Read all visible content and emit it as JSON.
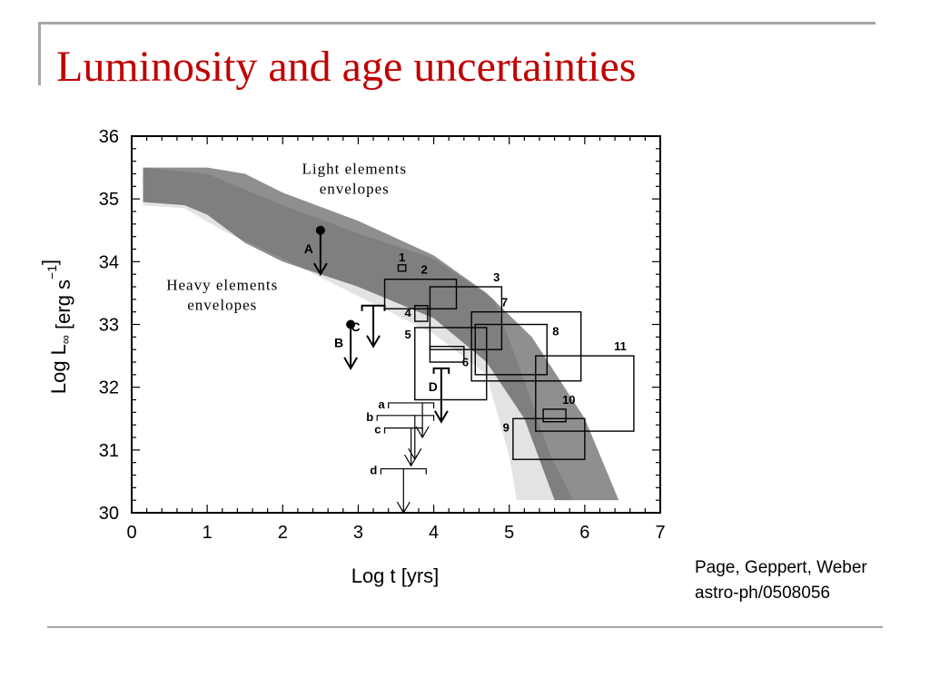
{
  "slide": {
    "title": "Luminosity and age uncertainties",
    "credit_authors": "Page, Geppert, Weber",
    "credit_ref": "astro-ph/0508056",
    "accent_color": "#c00000",
    "rule_color": "#a6a6a6"
  },
  "chart_data": {
    "type": "scatter",
    "xlabel": "Log t [yrs]",
    "ylabel": "Log L∞ [erg s⁻¹]",
    "xlim": [
      0,
      7
    ],
    "ylim": [
      30,
      36
    ],
    "xticks": [
      "0",
      "1",
      "2",
      "3",
      "4",
      "5",
      "6",
      "7"
    ],
    "yticks": [
      "30",
      "31",
      "32",
      "33",
      "34",
      "35",
      "36"
    ],
    "bands": [
      {
        "label_lines": [
          "Light elements",
          "envelopes"
        ],
        "color": "#e3e3e3",
        "upper": [
          [
            0.15,
            35.5
          ],
          [
            1,
            35.4
          ],
          [
            2,
            34.9
          ],
          [
            3,
            34.45
          ],
          [
            4,
            34.05
          ],
          [
            4.8,
            33.4
          ],
          [
            5.2,
            32.1
          ],
          [
            5.55,
            30.9
          ],
          [
            5.85,
            30.2
          ]
        ],
        "lower": [
          [
            0.15,
            34.9
          ],
          [
            0.7,
            34.85
          ],
          [
            1.2,
            34.5
          ],
          [
            2,
            34.05
          ],
          [
            3,
            33.45
          ],
          [
            4,
            32.85
          ],
          [
            4.7,
            32.2
          ],
          [
            5.0,
            30.9
          ],
          [
            5.1,
            30.2
          ]
        ]
      },
      {
        "label_lines": [
          "Heavy elements",
          "envelopes"
        ],
        "color": "#8f8f8f",
        "upper": [
          [
            0.15,
            35.5
          ],
          [
            1,
            35.5
          ],
          [
            1.5,
            35.4
          ],
          [
            2,
            35.1
          ],
          [
            3,
            34.65
          ],
          [
            4,
            34.1
          ],
          [
            4.7,
            33.5
          ],
          [
            5.3,
            32.8
          ],
          [
            6.0,
            31.5
          ],
          [
            6.45,
            30.2
          ]
        ],
        "lower": [
          [
            0.15,
            34.95
          ],
          [
            0.7,
            34.9
          ],
          [
            1,
            34.75
          ],
          [
            1.5,
            34.3
          ],
          [
            2,
            34.0
          ],
          [
            3,
            33.6
          ],
          [
            4,
            33.1
          ],
          [
            4.7,
            32.4
          ],
          [
            5.2,
            31.5
          ],
          [
            5.6,
            30.2
          ]
        ]
      }
    ],
    "boxes": [
      {
        "label": "1",
        "x": [
          3.53,
          3.63
        ],
        "y": [
          33.85,
          33.95
        ]
      },
      {
        "label": "2",
        "x": [
          3.35,
          4.3
        ],
        "y": [
          33.25,
          33.72
        ]
      },
      {
        "label": "3",
        "x": [
          3.95,
          4.9
        ],
        "y": [
          32.6,
          33.6
        ]
      },
      {
        "label": "4",
        "x": [
          3.75,
          3.92
        ],
        "y": [
          33.05,
          33.3
        ]
      },
      {
        "label": "5",
        "x": [
          3.75,
          4.7
        ],
        "y": [
          31.8,
          32.95
        ]
      },
      {
        "label": "6",
        "x": [
          3.95,
          4.4
        ],
        "y": [
          32.4,
          32.65
        ]
      },
      {
        "label": "7",
        "x": [
          4.5,
          5.95
        ],
        "y": [
          32.1,
          33.2
        ]
      },
      {
        "label": "8",
        "x": [
          4.55,
          5.5
        ],
        "y": [
          32.2,
          33.0
        ]
      },
      {
        "label": "9",
        "x": [
          5.05,
          6.0
        ],
        "y": [
          30.85,
          31.5
        ]
      },
      {
        "label": "10",
        "x": [
          5.45,
          5.75
        ],
        "y": [
          31.45,
          31.65
        ]
      },
      {
        "label": "11",
        "x": [
          5.35,
          6.65
        ],
        "y": [
          31.3,
          32.5
        ]
      }
    ],
    "limits": [
      {
        "label": "A",
        "x": 2.5,
        "y": 34.5,
        "style": "point",
        "arrow_to": 33.8
      },
      {
        "label": "B",
        "x": 2.9,
        "y": 33.0,
        "style": "point",
        "arrow_to": 32.3
      },
      {
        "label": "C",
        "x": 3.2,
        "y": 33.3,
        "x_range": [
          3.05,
          3.35
        ],
        "style": "bar",
        "arrow_to": 32.65
      },
      {
        "label": "D",
        "x": 4.1,
        "y": 32.3,
        "x_range": [
          4.0,
          4.2
        ],
        "style": "bar",
        "arrow_to": 31.45
      },
      {
        "label": "a",
        "x": 3.85,
        "y": 31.75,
        "x_range": [
          3.4,
          4.0
        ],
        "style": "bar-thin",
        "arrow_to": 31.2
      },
      {
        "label": "b",
        "x": 3.75,
        "y": 31.55,
        "x_range": [
          3.25,
          4.0
        ],
        "style": "bar-thin",
        "arrow_to": 30.85
      },
      {
        "label": "c",
        "x": 3.7,
        "y": 31.35,
        "x_range": [
          3.35,
          3.85
        ],
        "style": "bar-thin",
        "arrow_to": 30.75
      },
      {
        "label": "d",
        "x": 3.6,
        "y": 30.7,
        "x_range": [
          3.3,
          3.9
        ],
        "style": "bar-thin",
        "arrow_to": 30.0
      }
    ]
  }
}
